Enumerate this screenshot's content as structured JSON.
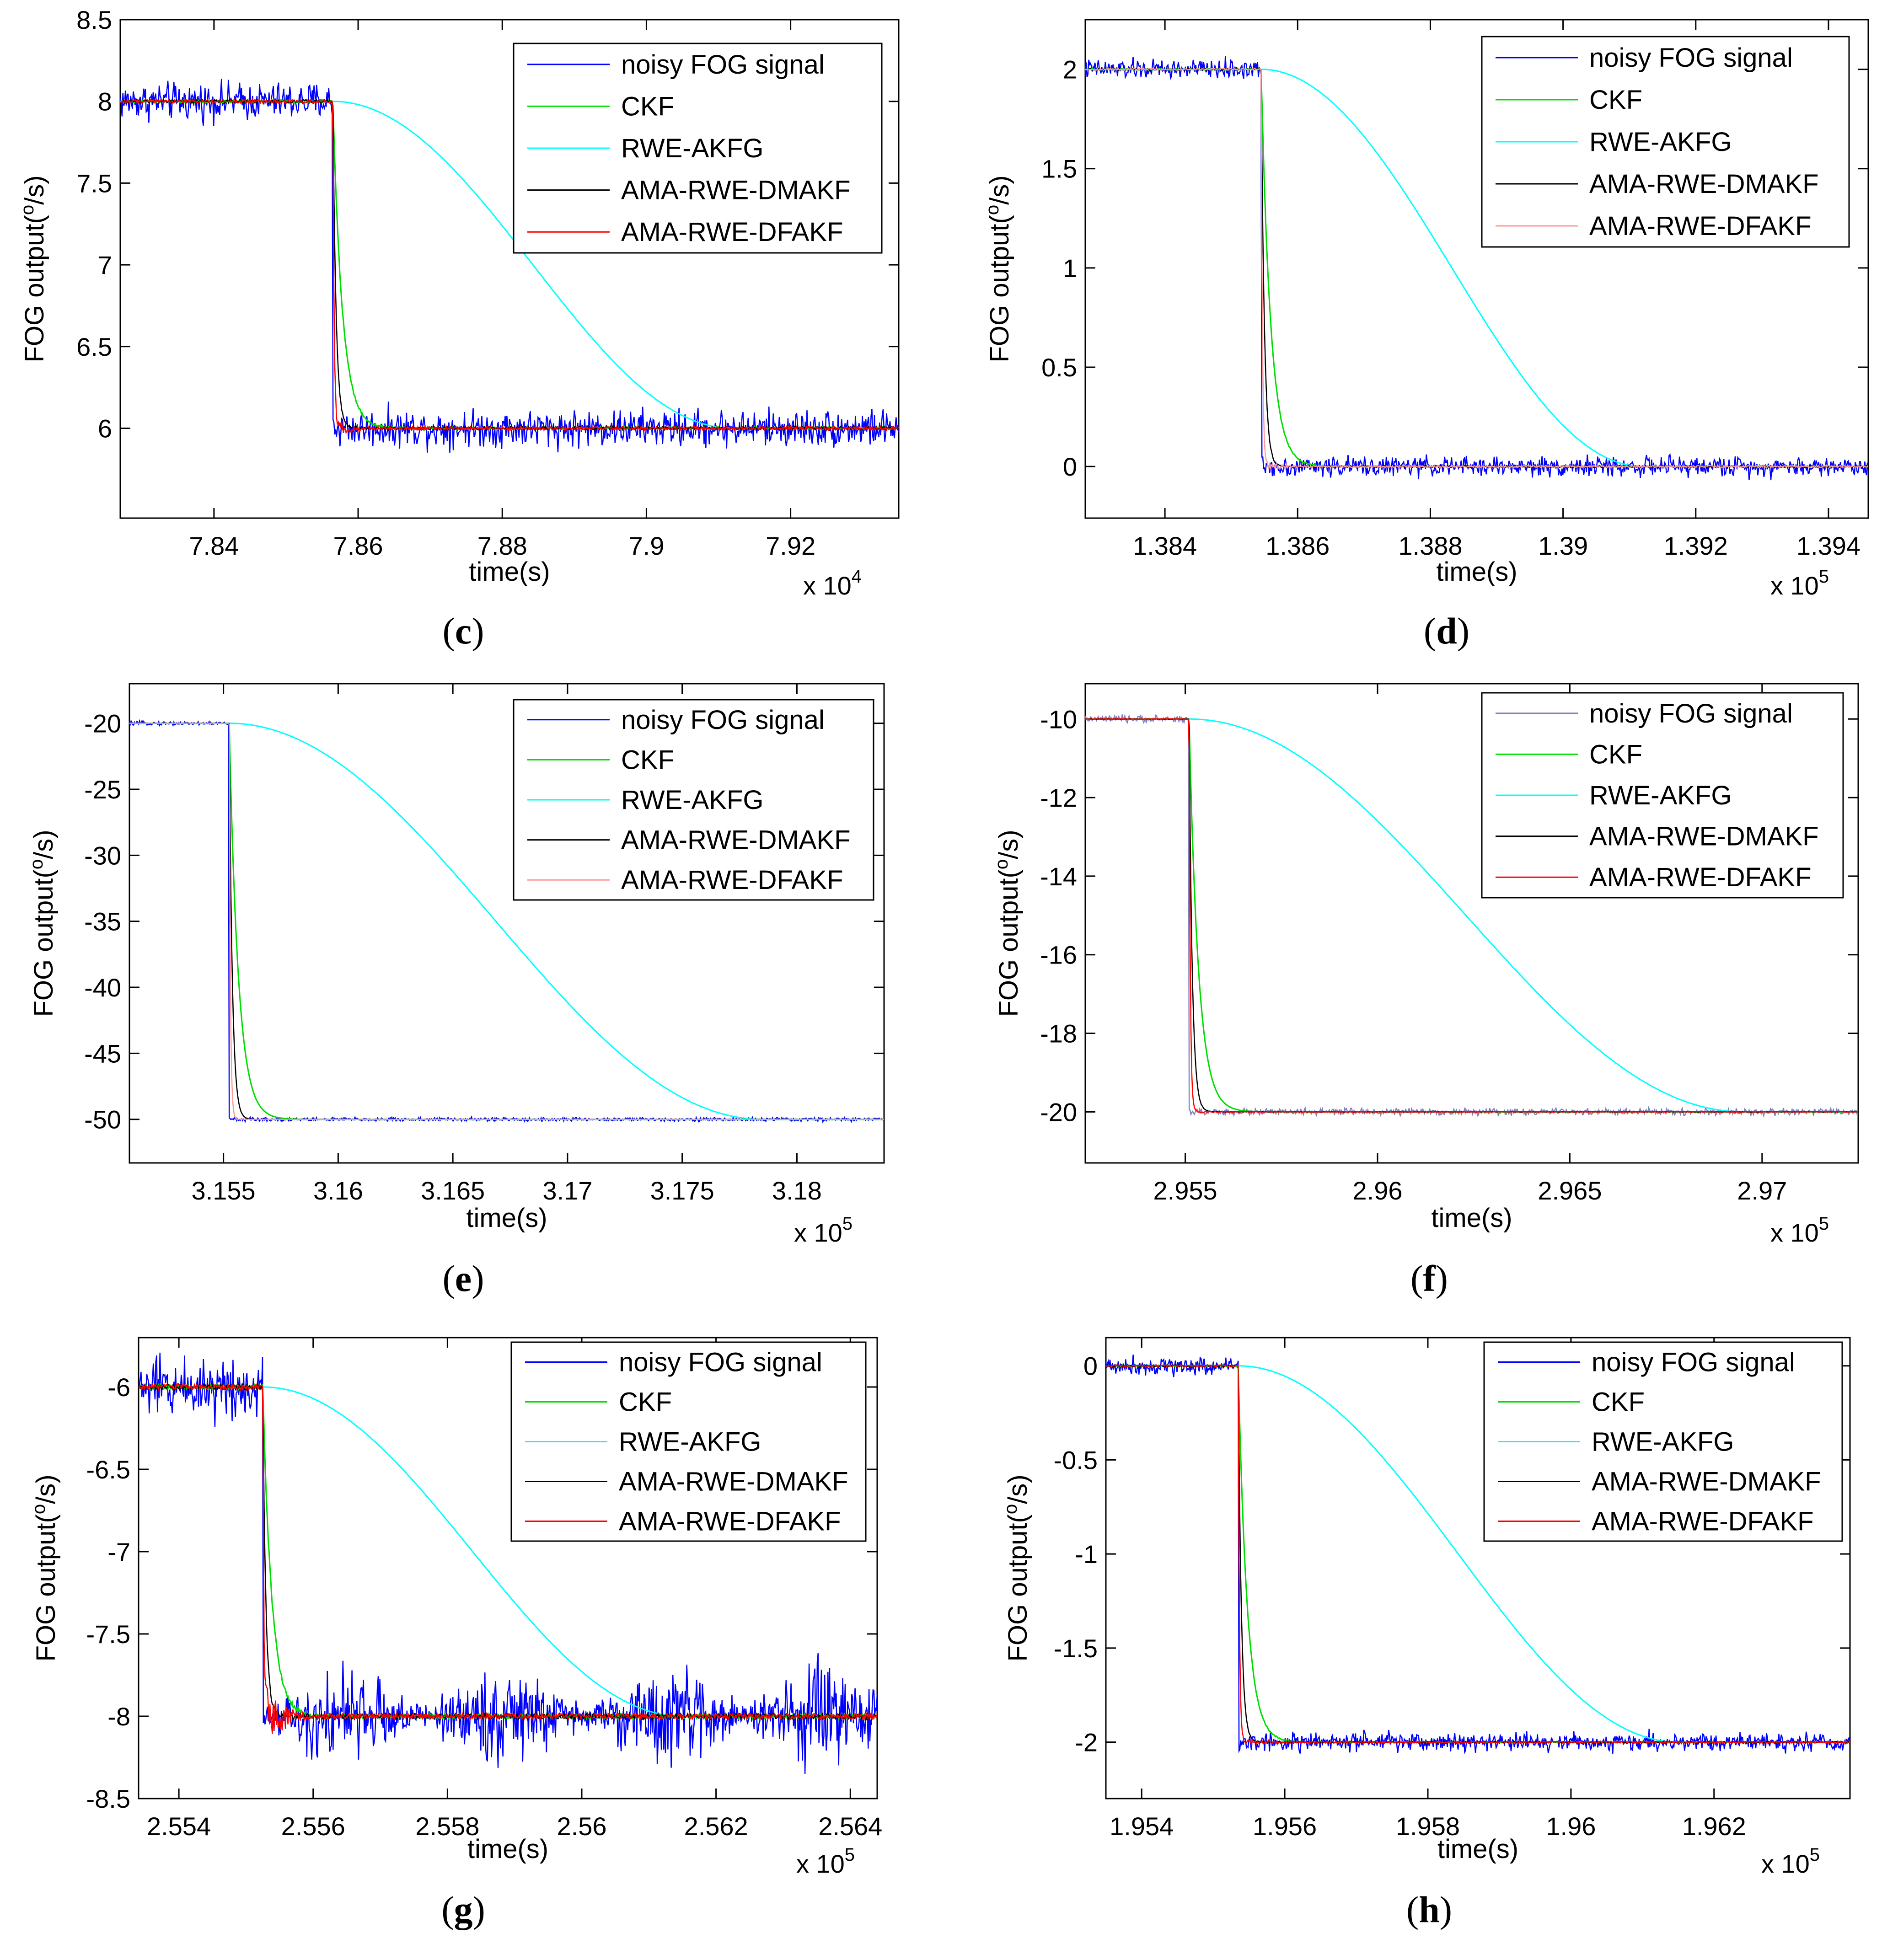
{
  "chart_data": [
    {
      "panel": "c",
      "type": "line",
      "xlabel": "time(s)",
      "ylabel": "FOG output(°/s)",
      "ylabel_base": "FOG output(",
      "ylabel_sup": "o",
      "ylabel_tail": "/s)",
      "x_multiplier": "x 10",
      "x_multiplier_exp": "4",
      "xlim": [
        7.827,
        7.935
      ],
      "ylim": [
        5.45,
        8.5
      ],
      "xticks": [
        "7.84",
        "7.86",
        "7.88",
        "7.9",
        "7.92"
      ],
      "xtick_values": [
        7.84,
        7.86,
        7.88,
        7.9,
        7.92
      ],
      "yticks": [
        "6",
        "6.5",
        "7",
        "7.5",
        "8",
        "8.5"
      ],
      "ytick_values": [
        6,
        6.5,
        7,
        7.5,
        8,
        8.5
      ],
      "step": {
        "t0": 7.8565,
        "y_before": 8,
        "y_after": 6
      },
      "noise": 0.08,
      "noise_pattern": "constant",
      "cyan_end": 7.912,
      "series": [
        {
          "name": "noisy FOG signal",
          "color": "#0000ff"
        },
        {
          "name": "CKF",
          "color": "#00dd00"
        },
        {
          "name": "RWE-AKFG",
          "color": "#00ffff"
        },
        {
          "name": "AMA-RWE-DMAKF",
          "color": "#000000"
        },
        {
          "name": "AMA-RWE-DFAKF",
          "color": "#ff0000"
        }
      ],
      "label_weight": "normal"
    },
    {
      "panel": "d",
      "type": "line",
      "xlabel": "time(s)",
      "ylabel": "FOG output(°/s)",
      "ylabel_base": "FOG output(",
      "ylabel_sup": "o",
      "ylabel_tail": "/s)",
      "x_multiplier": "x 10",
      "x_multiplier_exp": "5",
      "xlim": [
        1.3828,
        1.3946
      ],
      "ylim": [
        -0.26,
        2.25
      ],
      "xticks": [
        "1.384",
        "1.386",
        "1.388",
        "1.39",
        "1.392",
        "1.394"
      ],
      "xtick_values": [
        1.384,
        1.386,
        1.388,
        1.39,
        1.392,
        1.394
      ],
      "yticks": [
        "0",
        "0.5",
        "1",
        "1.5",
        "2"
      ],
      "ytick_values": [
        0,
        0.5,
        1,
        1.5,
        2
      ],
      "step": {
        "t0": 1.38545,
        "y_before": 2,
        "y_after": 0
      },
      "noise": 0.035,
      "noise_pattern": "constant",
      "cyan_end": 1.3912,
      "series": [
        {
          "name": "noisy FOG signal",
          "color": "#0000ff"
        },
        {
          "name": "CKF",
          "color": "#00dd00"
        },
        {
          "name": "RWE-AKFG",
          "color": "#00ffff"
        },
        {
          "name": "AMA-RWE-DMAKF",
          "color": "#000000"
        },
        {
          "name": "AMA-RWE-DFAKF",
          "color": "#ff9999"
        }
      ],
      "label_weight": "bold"
    },
    {
      "panel": "e",
      "type": "line",
      "xlabel": "time(s)",
      "ylabel": "FOG output(°/s)",
      "ylabel_base": "FOG output(",
      "ylabel_sup": "o",
      "ylabel_tail": "/s)",
      "x_multiplier": "x 10",
      "x_multiplier_exp": "5",
      "xlim": [
        3.1509,
        3.1838
      ],
      "ylim": [
        -53.3,
        -17.0
      ],
      "xticks": [
        "3.155",
        "3.16",
        "3.165",
        "3.17",
        "3.175",
        "3.18"
      ],
      "xtick_values": [
        3.155,
        3.16,
        3.165,
        3.17,
        3.175,
        3.18
      ],
      "yticks": [
        "-50",
        "-45",
        "-40",
        "-35",
        "-30",
        "-25",
        "-20"
      ],
      "ytick_values": [
        -50,
        -45,
        -40,
        -35,
        -30,
        -25,
        -20
      ],
      "step": {
        "t0": 3.15525,
        "y_before": -20,
        "y_after": -50
      },
      "noise": 0.1,
      "noise_pattern": "constant",
      "cyan_end": 3.1785,
      "series": [
        {
          "name": "noisy FOG signal",
          "color": "#0000ff"
        },
        {
          "name": "CKF",
          "color": "#00dd00"
        },
        {
          "name": "RWE-AKFG",
          "color": "#00ffff"
        },
        {
          "name": "AMA-RWE-DMAKF",
          "color": "#000000"
        },
        {
          "name": "AMA-RWE-DFAKF",
          "color": "#ff9999"
        }
      ],
      "label_weight": "bold"
    },
    {
      "panel": "f",
      "type": "line",
      "xlabel": "time(s)",
      "ylabel": "FOG output(°/s)",
      "ylabel_base": "FOG output(",
      "ylabel_sup": "o",
      "ylabel_tail": "/s)",
      "x_multiplier": "x 10",
      "x_multiplier_exp": "5",
      "xlim": [
        2.9524,
        2.9725
      ],
      "ylim": [
        -21.3,
        -9.1
      ],
      "xticks": [
        "2.955",
        "2.96",
        "2.965",
        "2.97"
      ],
      "xtick_values": [
        2.955,
        2.96,
        2.965,
        2.97
      ],
      "yticks": [
        "-20",
        "-18",
        "-16",
        "-14",
        "-12",
        "-10"
      ],
      "ytick_values": [
        -20,
        -18,
        -16,
        -14,
        -12,
        -10
      ],
      "step": {
        "t0": 2.9551,
        "y_before": -10,
        "y_after": -20
      },
      "noise": 0.06,
      "noise_pattern": "constant",
      "cyan_end": 2.9695,
      "series": [
        {
          "name": "noisy FOG signal",
          "color": "#8080c0"
        },
        {
          "name": "CKF",
          "color": "#00dd00"
        },
        {
          "name": "RWE-AKFG",
          "color": "#00ffff"
        },
        {
          "name": "AMA-RWE-DMAKF",
          "color": "#000000"
        },
        {
          "name": "AMA-RWE-DFAKF",
          "color": "#ff0000"
        }
      ],
      "label_weight": "bold"
    },
    {
      "panel": "g",
      "type": "line",
      "xlabel": "time(s)",
      "ylabel": "FOG output(°/s)",
      "ylabel_base": "FOG output(",
      "ylabel_sup": "o",
      "ylabel_tail": "/s)",
      "x_multiplier": "x 10",
      "x_multiplier_exp": "5",
      "xlim": [
        2.5534,
        2.5644
      ],
      "ylim": [
        -8.5,
        -5.7
      ],
      "xticks": [
        "2.554",
        "2.556",
        "2.558",
        "2.56",
        "2.562",
        "2.564"
      ],
      "xtick_values": [
        2.554,
        2.556,
        2.558,
        2.56,
        2.562,
        2.564
      ],
      "yticks": [
        "-8.5",
        "-8",
        "-7.5",
        "-7",
        "-6.5",
        "-6"
      ],
      "ytick_values": [
        -8.5,
        -8,
        -7.5,
        -7,
        -6.5,
        -6
      ],
      "step": {
        "t0": 2.55525,
        "y_before": -6,
        "y_after": -8
      },
      "noise": 0.13,
      "noise_pattern": "bursts",
      "cyan_end": 2.5615,
      "series": [
        {
          "name": "noisy FOG signal",
          "color": "#0000ff"
        },
        {
          "name": "CKF",
          "color": "#00dd00"
        },
        {
          "name": "RWE-AKFG",
          "color": "#00ffff"
        },
        {
          "name": "AMA-RWE-DMAKF",
          "color": "#000000"
        },
        {
          "name": "AMA-RWE-DFAKF",
          "color": "#ff0000"
        }
      ],
      "label_weight": "bold"
    },
    {
      "panel": "h",
      "type": "line",
      "xlabel": "time(s)",
      "ylabel": "FOG output(°/s)",
      "ylabel_base": "FOG output(",
      "ylabel_sup": "o",
      "ylabel_tail": "/s)",
      "x_multiplier": "x 10",
      "x_multiplier_exp": "5",
      "xlim": [
        1.9535,
        1.9639
      ],
      "ylim": [
        -2.3,
        0.15
      ],
      "xticks": [
        "1.954",
        "1.956",
        "1.958",
        "1.96",
        "1.962"
      ],
      "xtick_values": [
        1.954,
        1.956,
        1.958,
        1.96,
        1.962
      ],
      "yticks": [
        "-2",
        "-1.5",
        "-1",
        "-0.5",
        "0"
      ],
      "ytick_values": [
        -2,
        -1.5,
        -1,
        -0.5,
        0
      ],
      "step": {
        "t0": 1.95535,
        "y_before": 0,
        "y_after": -2
      },
      "noise": 0.035,
      "noise_pattern": "constant",
      "cyan_end": 1.9615,
      "series": [
        {
          "name": "noisy FOG signal",
          "color": "#0000ff"
        },
        {
          "name": "CKF",
          "color": "#00dd00"
        },
        {
          "name": "RWE-AKFG",
          "color": "#00ffff"
        },
        {
          "name": "AMA-RWE-DMAKF",
          "color": "#000000"
        },
        {
          "name": "AMA-RWE-DFAKF",
          "color": "#ff0000"
        }
      ],
      "label_weight": "bold"
    }
  ]
}
